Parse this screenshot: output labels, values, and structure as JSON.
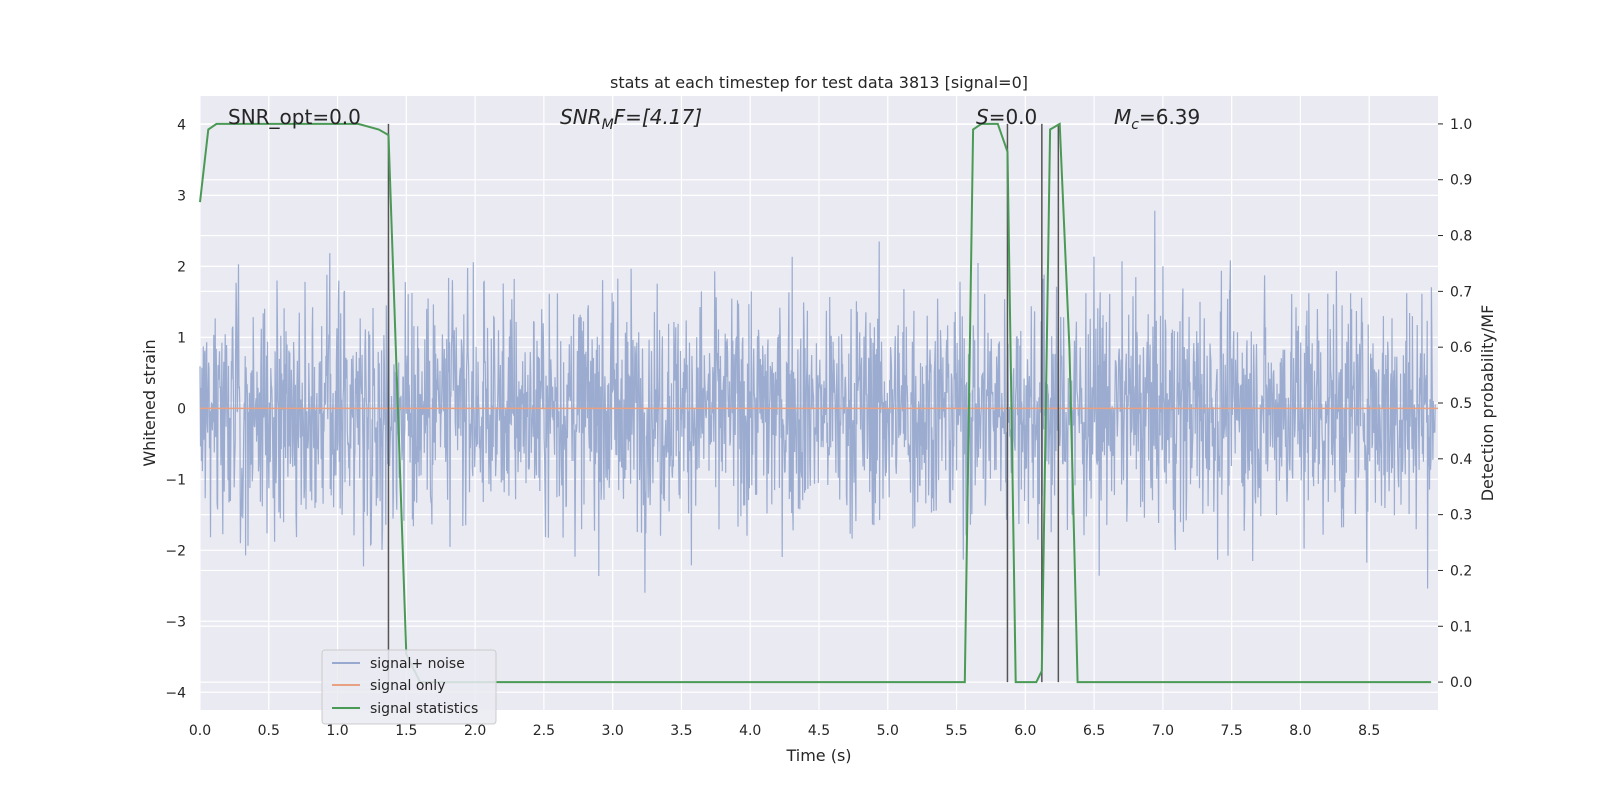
{
  "chart_data": {
    "type": "line",
    "title": "stats at each timestep for test data 3813 [signal=0]",
    "xlabel": "Time (s)",
    "ylabel_left": "Whitened strain",
    "ylabel_right": "Detection probability/MF",
    "xlim": [
      0.0,
      9.0
    ],
    "ylim_left": [
      -4.25,
      4.4
    ],
    "ylim_right": [
      -0.05,
      1.05
    ],
    "x_ticks": [
      "0.0",
      "0.5",
      "1.0",
      "1.5",
      "2.0",
      "2.5",
      "3.0",
      "3.5",
      "4.0",
      "4.5",
      "5.0",
      "5.5",
      "6.0",
      "6.5",
      "7.0",
      "7.5",
      "8.0",
      "8.5"
    ],
    "y_ticks_left": [
      "4",
      "3",
      "2",
      "1",
      "0",
      "−1",
      "−2",
      "−3",
      "−4"
    ],
    "y_ticks_right": [
      "1.0",
      "0.9",
      "0.8",
      "0.7",
      "0.6",
      "0.5",
      "0.4",
      "0.3",
      "0.2",
      "0.1",
      "0.0"
    ],
    "grid": true,
    "legend_position": "lower-left",
    "annotations": {
      "snr_opt": "SNR_opt=0.0",
      "snr_mf_base": "SNR",
      "snr_mf_sub": "M",
      "snr_mf_rest": "F=[4.17]",
      "s_var": "S",
      "s_rest": "=0.0",
      "mc_base": "M",
      "mc_sub": "c",
      "mc_rest": "=6.39"
    },
    "vertical_markers": [
      1.37,
      5.87,
      6.12,
      6.24
    ],
    "series": [
      {
        "name": "signal+ noise",
        "axis": "left",
        "color": "#97a9ce",
        "description": "whitened noise, amplitude ~±2.5, peaks to ±4"
      },
      {
        "name": "signal only",
        "axis": "left",
        "color": "#e8a182",
        "x": [
          0.0,
          9.0
        ],
        "values": [
          0.0,
          0.0
        ]
      },
      {
        "name": "signal statistics",
        "axis": "right",
        "color": "#4a9a56",
        "x": [
          0.0,
          0.06,
          0.12,
          0.5,
          1.0,
          1.15,
          1.3,
          1.37,
          1.5,
          1.6,
          2.0,
          3.0,
          4.0,
          5.0,
          5.56,
          5.62,
          5.68,
          5.8,
          5.87,
          5.93,
          6.08,
          6.12,
          6.18,
          6.25,
          6.32,
          6.38,
          7.0,
          8.0,
          8.95
        ],
        "values": [
          0.86,
          0.99,
          1.0,
          1.0,
          1.0,
          1.0,
          0.99,
          0.98,
          0.05,
          0.0,
          0.0,
          0.0,
          0.0,
          0.0,
          0.0,
          0.99,
          1.0,
          1.0,
          0.95,
          0.0,
          0.0,
          0.02,
          0.99,
          1.0,
          0.6,
          0.0,
          0.0,
          0.0,
          0.0
        ]
      }
    ]
  }
}
